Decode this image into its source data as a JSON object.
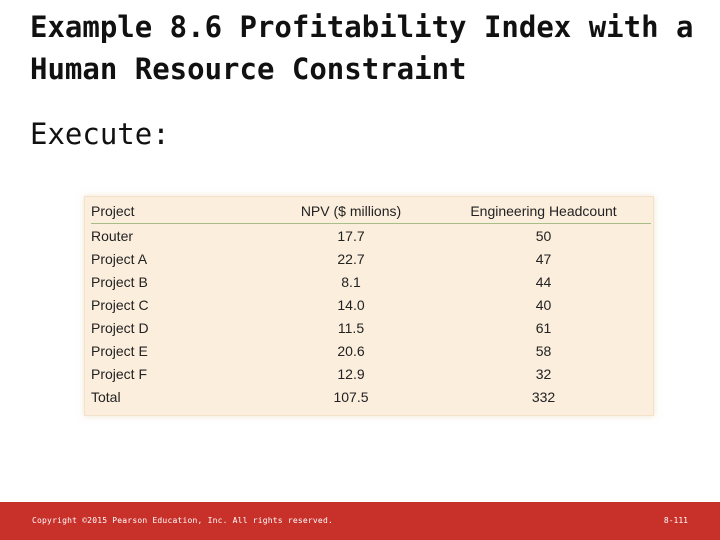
{
  "slide": {
    "title": "Example 8.6 Profitability Index with a Human Resource Constraint",
    "subtitle": "Execute:"
  },
  "table": {
    "headers": [
      "Project",
      "NPV ($ millions)",
      "Engineering Headcount"
    ],
    "rows": [
      [
        "Router",
        "17.7",
        "50"
      ],
      [
        "Project A",
        "22.7",
        "47"
      ],
      [
        "Project B",
        "8.1",
        "44"
      ],
      [
        "Project C",
        "14.0",
        "40"
      ],
      [
        "Project D",
        "11.5",
        "61"
      ],
      [
        "Project E",
        "20.6",
        "58"
      ],
      [
        "Project F",
        "12.9",
        "32"
      ],
      [
        "Total",
        "107.5",
        "332"
      ]
    ]
  },
  "footer": {
    "copyright": "Copyright ©2015 Pearson Education, Inc. All rights reserved.",
    "page": "8-111"
  },
  "colors": {
    "footer_bar": "#c8302a",
    "table_background": "#fbeedd",
    "header_rule": "#a7bf86"
  }
}
